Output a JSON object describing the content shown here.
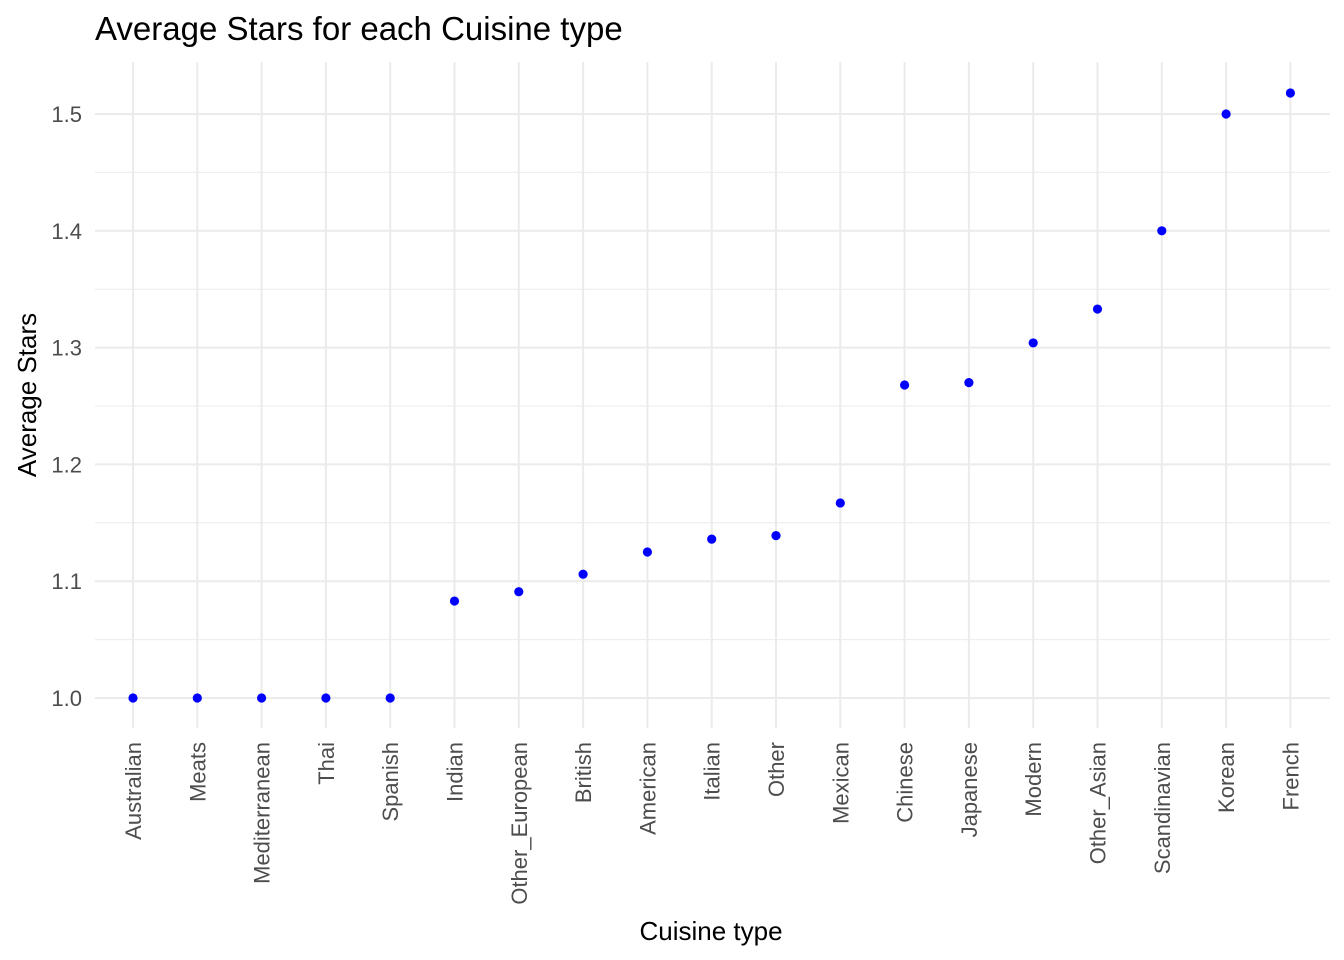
{
  "chart_data": {
    "type": "scatter",
    "title": "Average Stars for each Cuisine type",
    "xlabel": "Cuisine type",
    "ylabel": "Average Stars",
    "categories": [
      "Australian",
      "Meats",
      "Mediterranean",
      "Thai",
      "Spanish",
      "Indian",
      "Other_European",
      "British",
      "American",
      "Italian",
      "Other",
      "Mexican",
      "Chinese",
      "Japanese",
      "Modern",
      "Other_Asian",
      "Scandinavian",
      "Korean",
      "French"
    ],
    "values": [
      1.0,
      1.0,
      1.0,
      1.0,
      1.0,
      1.083,
      1.091,
      1.106,
      1.125,
      1.136,
      1.139,
      1.167,
      1.268,
      1.27,
      1.304,
      1.333,
      1.4,
      1.5,
      1.518
    ],
    "yticks": [
      "1.0",
      "1.1",
      "1.2",
      "1.3",
      "1.4",
      "1.5"
    ],
    "ylim": [
      0.974,
      1.544
    ],
    "grid": true,
    "legend": "none",
    "point_color": "#0000ff",
    "grid_color": "#ebebeb"
  }
}
